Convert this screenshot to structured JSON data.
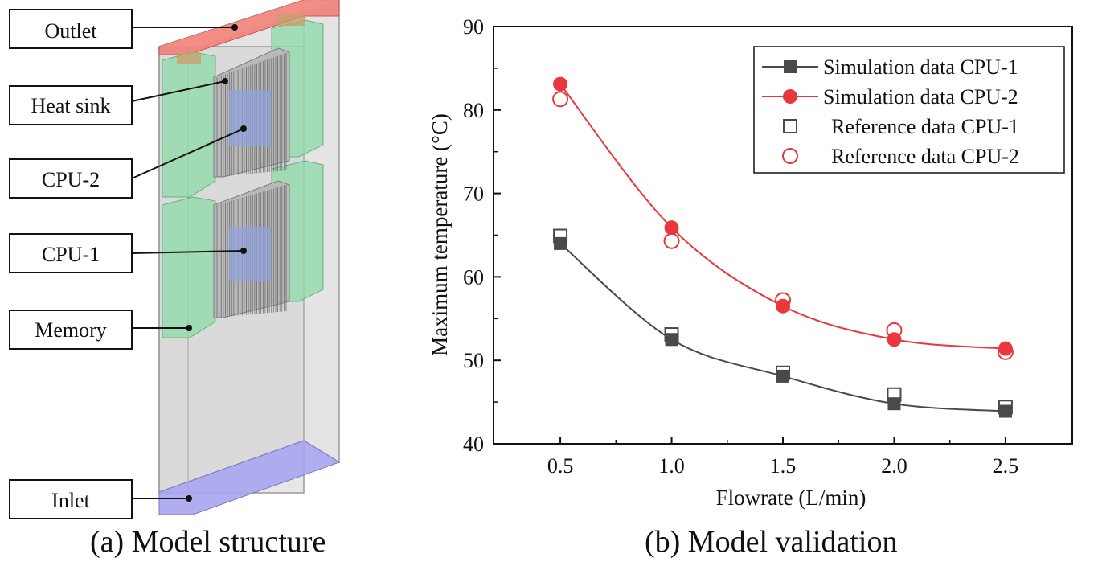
{
  "left_panel": {
    "labels": {
      "outlet": "Outlet",
      "heat_sink": "Heat sink",
      "cpu2": "CPU-2",
      "cpu1": "CPU-1",
      "memory": "Memory",
      "inlet": "Inlet"
    },
    "caption": "(a) Model structure",
    "colors": {
      "outlet": "#f0786c",
      "inlet": "#a9a8ee",
      "memory": "#8fdcaa",
      "cpu": "#8fa3e0",
      "housing": "#d6d6d6"
    }
  },
  "right_panel": {
    "caption": "(b) Model validation"
  },
  "chart_data": {
    "type": "line",
    "title": "",
    "xlabel": "Flowrate (L/min)",
    "ylabel": "Maximum temperature (°C)",
    "x": [
      0.5,
      1.0,
      1.5,
      2.0,
      2.5
    ],
    "x_tick_labels": [
      "0.5",
      "1.0",
      "1.5",
      "2.0",
      "2.5"
    ],
    "xlim": [
      0.2,
      2.8
    ],
    "ylim": [
      40,
      90
    ],
    "y_ticks": [
      40,
      50,
      60,
      70,
      80,
      90
    ],
    "y_tick_labels": [
      "40",
      "50",
      "60",
      "70",
      "80",
      "90"
    ],
    "grid": false,
    "legend_position": "top-right",
    "series": [
      {
        "name": "Simulation data CPU-1",
        "values": [
          64.0,
          52.5,
          48.1,
          44.8,
          43.9
        ],
        "marker": "filled-square",
        "line": true,
        "color": "#4a4a4a"
      },
      {
        "name": "Simulation data CPU-2",
        "values": [
          83.1,
          65.9,
          56.5,
          52.5,
          51.4
        ],
        "marker": "filled-circle",
        "line": true,
        "color": "#e8383d"
      },
      {
        "name": "Reference data CPU-1",
        "values": [
          64.9,
          53.1,
          48.5,
          45.9,
          44.4
        ],
        "marker": "open-square",
        "line": false,
        "color": "#4a4a4a"
      },
      {
        "name": "Reference data CPU-2",
        "values": [
          81.3,
          64.3,
          57.2,
          53.6,
          51.0
        ],
        "marker": "open-circle",
        "line": false,
        "color": "#e8383d"
      }
    ]
  }
}
